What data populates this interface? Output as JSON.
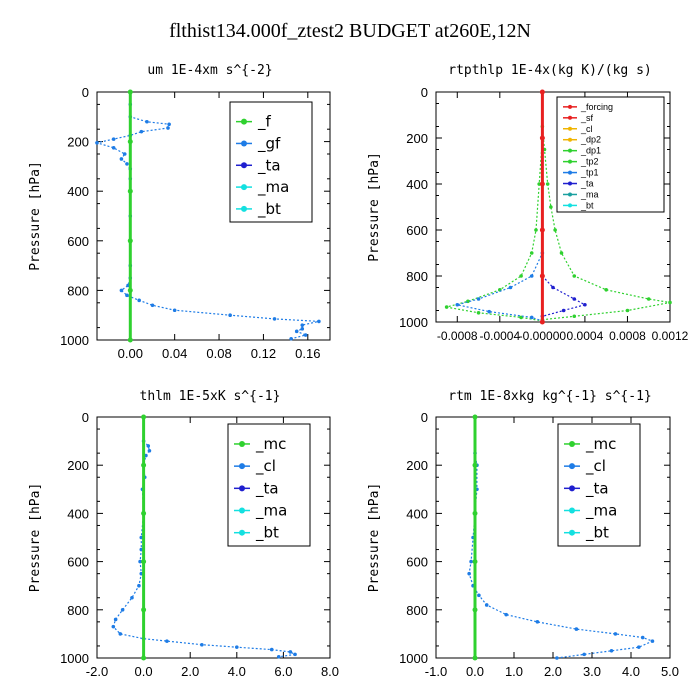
{
  "title": "flthist134.000f_ztest2  BUDGET at260E,12N",
  "colors": {
    "blue": "#1e7ce6",
    "green": "#2fd12f",
    "cyan": "#13e0e0",
    "red": "#e82020",
    "navy": "#1f1fcf",
    "orange": "#f0b400",
    "purple": "#8a2be2",
    "teal": "#1aa0a0"
  },
  "chart_data": [
    {
      "type": "line",
      "title": "um  1E-4xm s^{-2}",
      "ylabel": "Pressure [hPa]",
      "xlim": [
        -0.03,
        0.18
      ],
      "ylim": [
        1000,
        0
      ],
      "xticks": [
        "0.00",
        "0.04",
        "0.08",
        "0.12",
        "0.16"
      ],
      "xtick_values": [
        0,
        0.04,
        0.08,
        0.12,
        0.16
      ],
      "yticks": [
        "0",
        "200",
        "400",
        "600",
        "800",
        "1000"
      ],
      "legend_small": false,
      "legend": [
        "_f",
        "_gf",
        "_ta",
        "_ma",
        "_bt"
      ],
      "series": [
        {
          "name": "_gf",
          "color": "#1e7ce6",
          "points": [
            [
              0,
              0
            ],
            [
              0,
              50
            ],
            [
              0,
              100
            ],
            [
              0.015,
              120
            ],
            [
              0.035,
              130
            ],
            [
              0.034,
              145
            ],
            [
              0.01,
              160
            ],
            [
              0,
              175
            ],
            [
              -0.015,
              190
            ],
            [
              -0.03,
              205
            ],
            [
              -0.015,
              225
            ],
            [
              -0.005,
              250
            ],
            [
              -0.008,
              270
            ],
            [
              -0.003,
              290
            ],
            [
              0,
              310
            ],
            [
              0,
              350
            ],
            [
              0,
              400
            ],
            [
              0,
              500
            ],
            [
              0,
              600
            ],
            [
              0,
              700
            ],
            [
              0,
              750
            ],
            [
              -0.002,
              780
            ],
            [
              -0.008,
              800
            ],
            [
              -0.003,
              820
            ],
            [
              0.008,
              840
            ],
            [
              0.02,
              860
            ],
            [
              0.04,
              880
            ],
            [
              0.09,
              900
            ],
            [
              0.13,
              915
            ],
            [
              0.17,
              925
            ],
            [
              0.155,
              940
            ],
            [
              0.155,
              955
            ],
            [
              0.15,
              965
            ],
            [
              0.158,
              980
            ],
            [
              0.145,
              995
            ]
          ]
        },
        {
          "name": "_f",
          "color": "#2fd12f",
          "points": [
            [
              0,
              0
            ],
            [
              0,
              200
            ],
            [
              0,
              400
            ],
            [
              0,
              600
            ],
            [
              0,
              800
            ],
            [
              0,
              1000
            ]
          ]
        }
      ]
    },
    {
      "type": "line",
      "title": "rtpthlp  1E-4x(kg K)/(kg s)",
      "ylabel": "Pressure [hPa]",
      "xlim": [
        -0.001,
        0.0012
      ],
      "ylim": [
        1000,
        0
      ],
      "xticks": [
        "-0.0008",
        "-0.0004",
        "-0.00000",
        "0.0004",
        "0.0008",
        "0.0012"
      ],
      "xtick_values": [
        -0.0008,
        -0.0004,
        0,
        0.0004,
        0.0008,
        0.0012
      ],
      "yticks": [
        "0",
        "200",
        "400",
        "600",
        "800",
        "1000"
      ],
      "legend_small": true,
      "legend": [
        "_forcing",
        "_sf",
        "_cl",
        "_dp2",
        "_dp1",
        "_tp2",
        "_tp1",
        "_ta",
        "_ma",
        "_bt"
      ],
      "series": [
        {
          "name": "_tp2",
          "color": "#2fd12f",
          "points": [
            [
              0,
              0
            ],
            [
              0,
              150
            ],
            [
              2e-05,
              250
            ],
            [
              5e-05,
              400
            ],
            [
              8e-05,
              500
            ],
            [
              0.00012,
              600
            ],
            [
              0.00018,
              700
            ],
            [
              0.0003,
              800
            ],
            [
              0.0006,
              860
            ],
            [
              0.001,
              900
            ],
            [
              0.0012,
              915
            ],
            [
              0.0008,
              950
            ],
            [
              0.0003,
              975
            ],
            [
              0,
              990
            ]
          ]
        },
        {
          "name": "_dp1",
          "color": "#2fd12f",
          "points": [
            [
              0,
              0
            ],
            [
              0,
              200
            ],
            [
              -3e-05,
              400
            ],
            [
              -6e-05,
              600
            ],
            [
              -0.0001,
              700
            ],
            [
              -0.0002,
              800
            ],
            [
              -0.0004,
              860
            ],
            [
              -0.0007,
              910
            ],
            [
              -0.0009,
              935
            ],
            [
              -0.0006,
              960
            ],
            [
              -0.0002,
              980
            ],
            [
              0,
              995
            ]
          ]
        },
        {
          "name": "_ta",
          "color": "#1f1fcf",
          "points": [
            [
              0,
              0
            ],
            [
              0,
              800
            ],
            [
              0.0001,
              850
            ],
            [
              0.0003,
              900
            ],
            [
              0.0004,
              925
            ],
            [
              0.0002,
              950
            ],
            [
              0,
              975
            ],
            [
              0,
              995
            ]
          ]
        },
        {
          "name": "_tp1",
          "color": "#1e7ce6",
          "points": [
            [
              0,
              0
            ],
            [
              0,
              700
            ],
            [
              -0.0001,
              800
            ],
            [
              -0.0003,
              850
            ],
            [
              -0.0006,
              900
            ],
            [
              -0.0008,
              925
            ],
            [
              -0.0005,
              955
            ],
            [
              -0.0001,
              980
            ],
            [
              0,
              995
            ]
          ]
        },
        {
          "name": "_forcing",
          "color": "#e82020",
          "points": [
            [
              0,
              0
            ],
            [
              0,
              200
            ],
            [
              0,
              400
            ],
            [
              0,
              600
            ],
            [
              0,
              800
            ],
            [
              0,
              1000
            ]
          ]
        }
      ]
    },
    {
      "type": "line",
      "title": "thlm  1E-5xK s^{-1}",
      "ylabel": "Pressure [hPa]",
      "xlim": [
        -2.0,
        8.0
      ],
      "ylim": [
        1000,
        0
      ],
      "xticks": [
        "-2.0",
        "0.0",
        "2.0",
        "4.0",
        "6.0",
        "8.0"
      ],
      "xtick_values": [
        -2,
        0,
        2,
        4,
        6,
        8
      ],
      "yticks": [
        "0",
        "200",
        "400",
        "600",
        "800",
        "1000"
      ],
      "legend_small": false,
      "legend": [
        "_mc",
        "_cl",
        "_ta",
        "_ma",
        "_bt"
      ],
      "series": [
        {
          "name": "_cl",
          "color": "#1e7ce6",
          "points": [
            [
              0,
              0
            ],
            [
              0,
              100
            ],
            [
              0.2,
              120
            ],
            [
              0.25,
              140
            ],
            [
              0.1,
              160
            ],
            [
              0,
              200
            ],
            [
              0.05,
              250
            ],
            [
              -0.05,
              300
            ],
            [
              0,
              400
            ],
            [
              -0.1,
              500
            ],
            [
              -0.1,
              550
            ],
            [
              -0.15,
              600
            ],
            [
              -0.1,
              650
            ],
            [
              -0.2,
              700
            ],
            [
              -0.5,
              750
            ],
            [
              -0.9,
              800
            ],
            [
              -1.2,
              840
            ],
            [
              -1.3,
              870
            ],
            [
              -1.0,
              900
            ],
            [
              0,
              920
            ],
            [
              1.0,
              930
            ],
            [
              2.5,
              945
            ],
            [
              4.0,
              955
            ],
            [
              5.5,
              965
            ],
            [
              6.3,
              975
            ],
            [
              6.5,
              985
            ],
            [
              5.8,
              995
            ]
          ]
        },
        {
          "name": "_mc",
          "color": "#2fd12f",
          "points": [
            [
              0,
              0
            ],
            [
              0,
              200
            ],
            [
              0,
              400
            ],
            [
              0,
              600
            ],
            [
              0,
              800
            ],
            [
              0,
              1000
            ]
          ]
        }
      ]
    },
    {
      "type": "line",
      "title": "rtm  1E-8xkg kg^{-1} s^{-1}",
      "ylabel": "Pressure [hPa]",
      "xlim": [
        -1.0,
        5.0
      ],
      "ylim": [
        1000,
        0
      ],
      "xticks": [
        "-1.0",
        "0.0",
        "1.0",
        "2.0",
        "3.0",
        "4.0",
        "5.0"
      ],
      "xtick_values": [
        -1,
        0,
        1,
        2,
        3,
        4,
        5
      ],
      "yticks": [
        "0",
        "200",
        "400",
        "600",
        "800",
        "1000"
      ],
      "legend_small": false,
      "legend": [
        "_mc",
        "_cl",
        "_ta",
        "_ma",
        "_bt"
      ],
      "series": [
        {
          "name": "_cl",
          "color": "#1e7ce6",
          "points": [
            [
              0,
              0
            ],
            [
              0,
              150
            ],
            [
              0.05,
              200
            ],
            [
              0.05,
              300
            ],
            [
              0,
              400
            ],
            [
              -0.05,
              500
            ],
            [
              -0.1,
              600
            ],
            [
              -0.15,
              650
            ],
            [
              -0.05,
              700
            ],
            [
              0.1,
              740
            ],
            [
              0.3,
              780
            ],
            [
              0.8,
              820
            ],
            [
              1.6,
              850
            ],
            [
              2.6,
              880
            ],
            [
              3.6,
              900
            ],
            [
              4.3,
              915
            ],
            [
              4.55,
              930
            ],
            [
              4.2,
              955
            ],
            [
              3.5,
              970
            ],
            [
              2.8,
              985
            ],
            [
              2.1,
              1000
            ]
          ]
        },
        {
          "name": "_mc",
          "color": "#2fd12f",
          "points": [
            [
              0,
              0
            ],
            [
              0,
              200
            ],
            [
              0,
              400
            ],
            [
              0,
              600
            ],
            [
              0,
              800
            ],
            [
              0,
              1000
            ]
          ]
        }
      ]
    }
  ]
}
